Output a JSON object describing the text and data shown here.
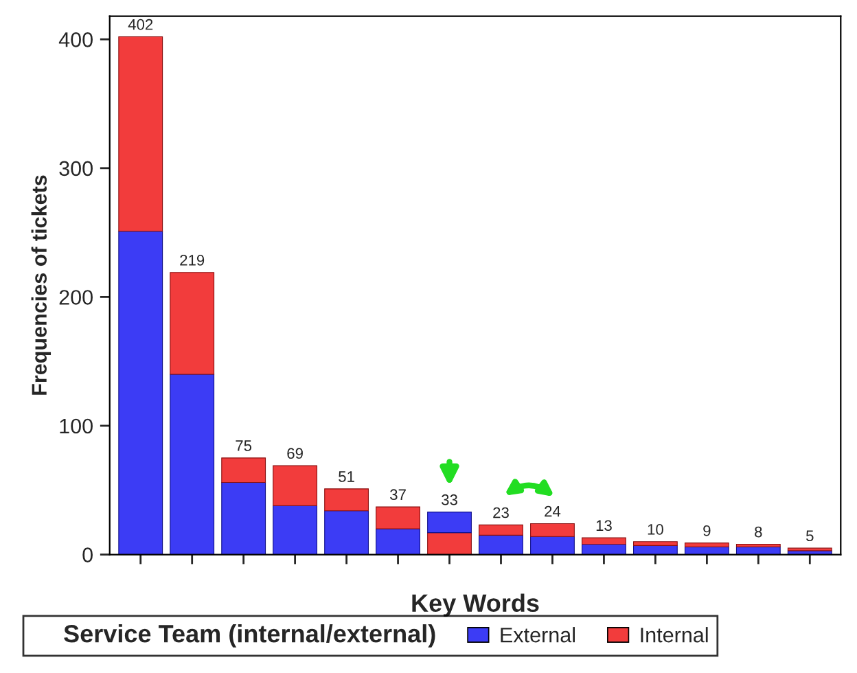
{
  "chart_data": {
    "type": "bar",
    "stacked": true,
    "xlabel": "Key Words",
    "ylabel": "Frequencies of tickets",
    "legend_title": "Service Team (internal/external)",
    "legend": "bottom",
    "categories": [
      null,
      null,
      null,
      null,
      null,
      null,
      null,
      null,
      null,
      null,
      null,
      null,
      null,
      null
    ],
    "series": [
      {
        "color": "#f23c3c",
        "values": [
          null,
          null,
          null,
          null,
          null,
          null,
          17,
          null,
          null,
          null,
          null,
          null,
          null,
          null
        ]
      },
      {
        "name": "External",
        "color": "#3c3cf5",
        "values": [
          251,
          140,
          56,
          38,
          34,
          20,
          16,
          15,
          14,
          8,
          7,
          6,
          6,
          3
        ]
      },
      {
        "name": "Internal",
        "color": "#f23c3c",
        "values": [
          151,
          79,
          19,
          31,
          17,
          17,
          null,
          8,
          10,
          5,
          3,
          3,
          2,
          2
        ]
      }
    ],
    "totals": [
      "402",
      "219",
      "75",
      "69",
      "51",
      "37",
      "33",
      "23",
      "24",
      "13",
      "10",
      "9",
      "8",
      "5"
    ],
    "ylim": [
      0,
      418
    ],
    "yticks": [
      0,
      100,
      200,
      300,
      400
    ],
    "grid": false
  }
}
